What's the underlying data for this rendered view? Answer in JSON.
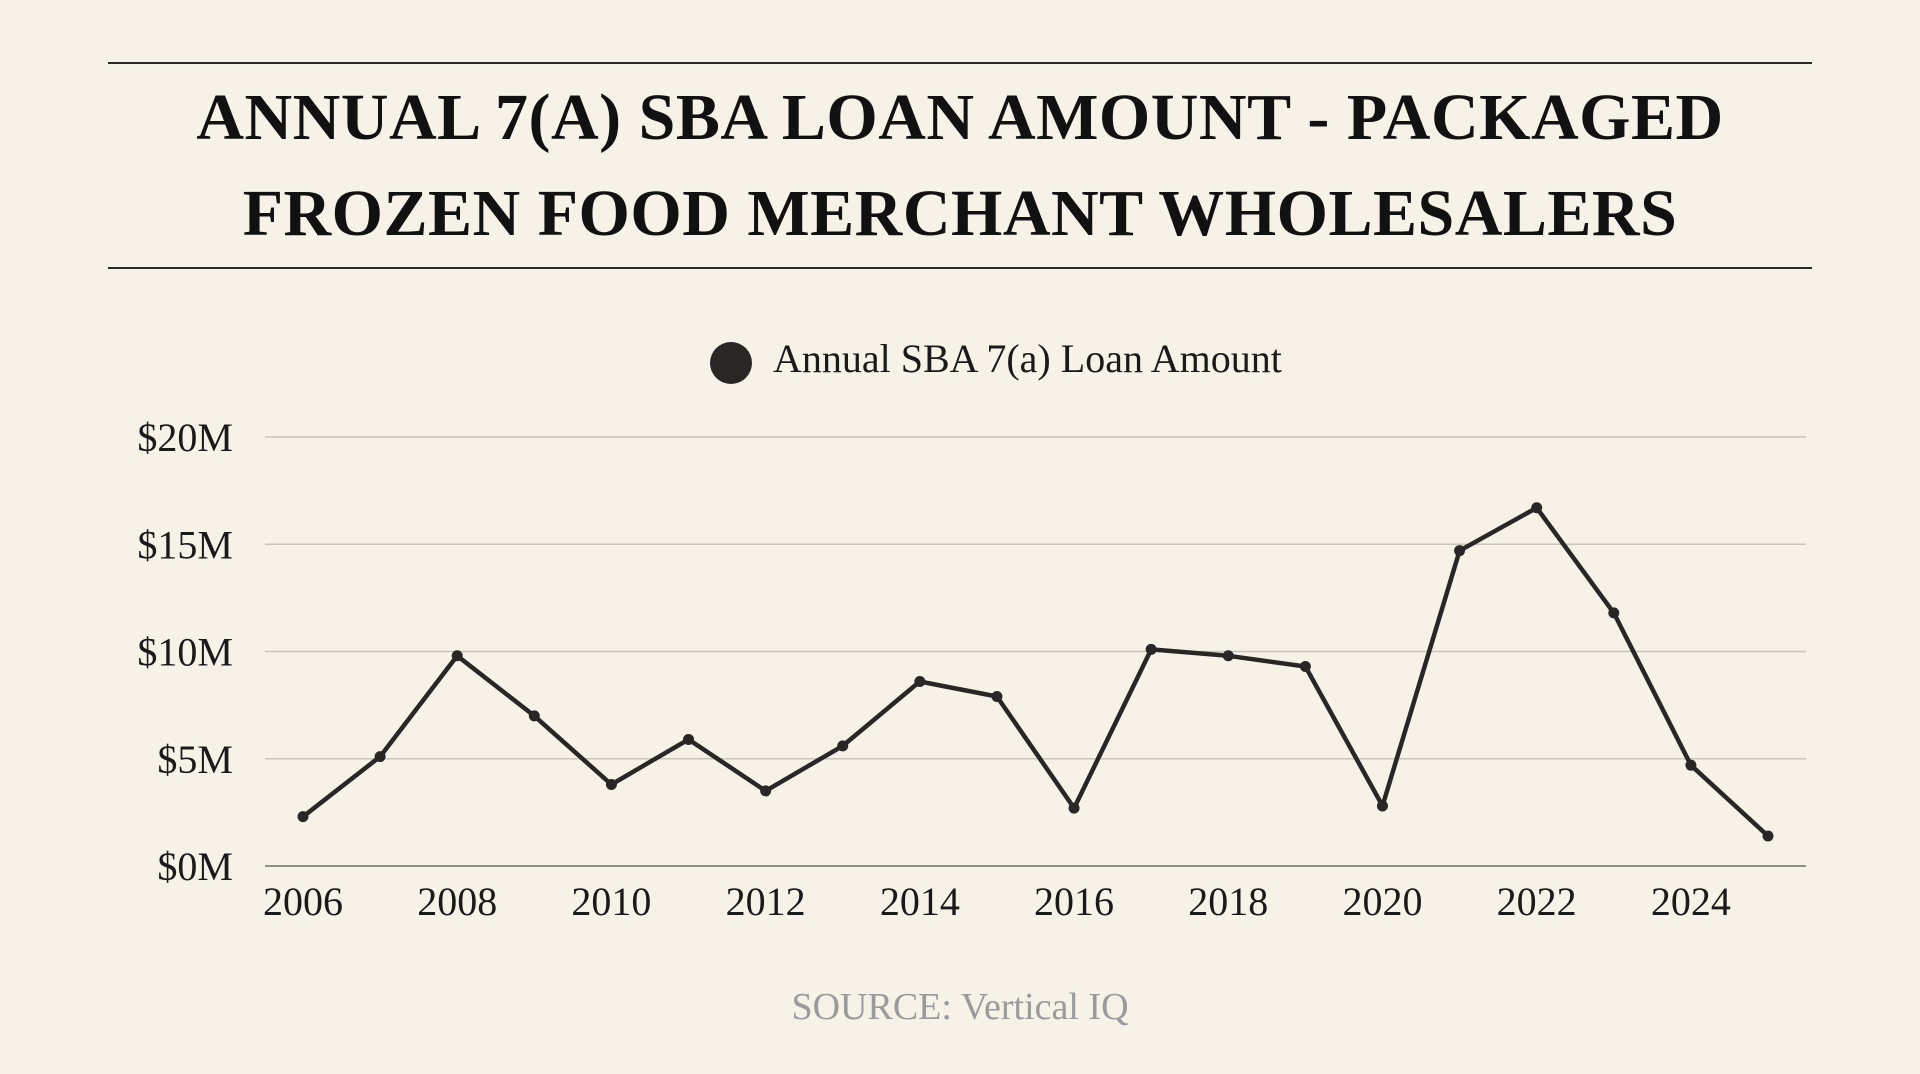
{
  "title_lines": [
    "ANNUAL 7(A) SBA LOAN AMOUNT - PACKAGED",
    "FROZEN FOOD MERCHANT WHOLESALERS"
  ],
  "source": "SOURCE: Vertical IQ",
  "chart_data": {
    "type": "line",
    "series": [
      {
        "name": "Annual SBA 7(a) Loan Amount",
        "color": "#2a2626",
        "x": [
          2006,
          2007,
          2008,
          2009,
          2010,
          2011,
          2012,
          2013,
          2014,
          2015,
          2016,
          2017,
          2018,
          2019,
          2020,
          2021,
          2022,
          2023,
          2024,
          2025
        ],
        "values": [
          2.3,
          5.1,
          9.8,
          7.0,
          3.8,
          5.9,
          3.5,
          5.6,
          8.6,
          7.9,
          2.7,
          10.1,
          9.8,
          9.3,
          2.8,
          14.7,
          16.7,
          11.8,
          4.7,
          1.4
        ]
      }
    ],
    "xticks": [
      2006,
      2008,
      2010,
      2012,
      2014,
      2016,
      2018,
      2020,
      2022,
      2024
    ],
    "xtick_labels": [
      "2006",
      "2008",
      "2010",
      "2012",
      "2014",
      "2016",
      "2018",
      "2020",
      "2022",
      "2024"
    ],
    "yticks": [
      0,
      5,
      10,
      15,
      20
    ],
    "ytick_labels": [
      "$0M",
      "$5M",
      "$10M",
      "$15M",
      "$20M"
    ],
    "xlim": [
      2006,
      2025
    ],
    "ylim": [
      0,
      20
    ],
    "grid": "horizontal",
    "legend_position": "top-center",
    "xlabel": "",
    "ylabel": ""
  }
}
